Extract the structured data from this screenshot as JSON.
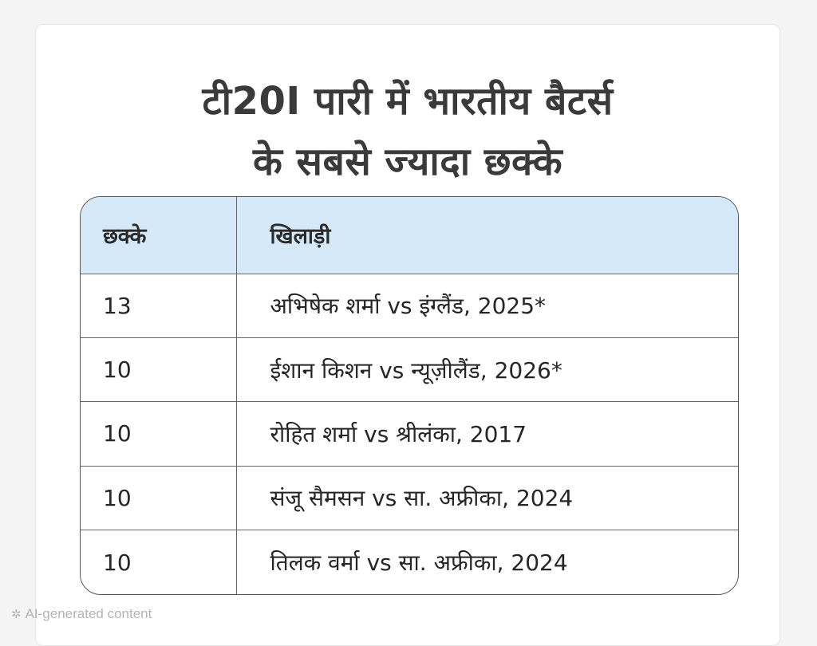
{
  "chart_data": {
    "type": "table",
    "title_lines": [
      "टी20I पारी में भारतीय बैटर्स",
      "के सबसे ज्यादा छक्के"
    ],
    "columns": [
      "छक्के",
      "खिलाड़ी"
    ],
    "rows": [
      {
        "sixes": "13",
        "player": "अभिषेक शर्मा vs इंग्लैंड, 2025*"
      },
      {
        "sixes": "10",
        "player": "ईशान किशन vs न्यूज़ीलैंड, 2026*"
      },
      {
        "sixes": "10",
        "player": "रोहित शर्मा vs श्रीलंका, 2017"
      },
      {
        "sixes": "10",
        "player": "संजू सैमसन vs सा. अफ्रीका, 2024"
      },
      {
        "sixes": "10",
        "player": "तिलक वर्मा vs सा. अफ्रीका, 2024"
      }
    ]
  },
  "footer": {
    "icon": "sparkle-icon",
    "text": "AI-generated content"
  },
  "colors": {
    "header_bg": "#d6e9f8",
    "title_text": "#3a3a3a"
  }
}
